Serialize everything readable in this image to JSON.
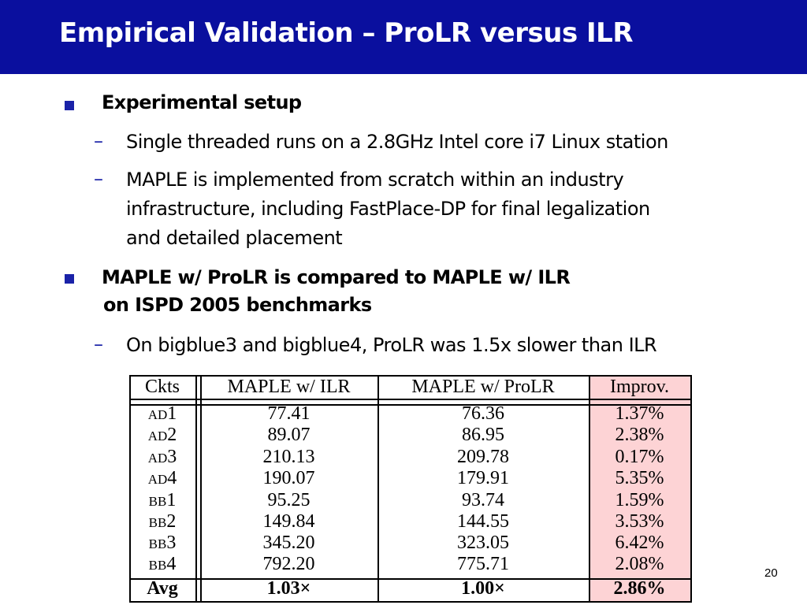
{
  "slide": {
    "title": "Empirical Validation – ProLR versus ILR",
    "page_number": "20",
    "bullets": [
      {
        "text": "Experimental setup",
        "subs": [
          "Single threaded runs on a 2.8GHz Intel core i7 Linux station",
          "MAPLE is implemented from scratch within an industry",
          "infrastructure, including FastPlace-DP for final legalization",
          "and detailed placement"
        ]
      },
      {
        "text": "MAPLE w/ ProLR is compared to MAPLE w/ ILR",
        "text2": "on ISPD 2005 benchmarks",
        "subs": [
          "On bigblue3 and bigblue4, ProLR was 1.5x slower than ILR"
        ]
      }
    ],
    "dash_glyph": "–",
    "square_glyph_color": "#1a22a8",
    "improv_highlight_color": "#fdd3d5"
  },
  "table": {
    "headers": [
      "Ckts",
      "MAPLE w/ ILR",
      "MAPLE w/ ProLR",
      "Improv."
    ],
    "rows": [
      [
        "ad1",
        "77.41",
        "76.36",
        "1.37%"
      ],
      [
        "ad2",
        "89.07",
        "86.95",
        "2.38%"
      ],
      [
        "ad3",
        "210.13",
        "209.78",
        "0.17%"
      ],
      [
        "ad4",
        "190.07",
        "179.91",
        "5.35%"
      ],
      [
        "bb1",
        "95.25",
        "93.74",
        "1.59%"
      ],
      [
        "bb2",
        "149.84",
        "144.55",
        "3.53%"
      ],
      [
        "bb3",
        "345.20",
        "323.05",
        "6.42%"
      ],
      [
        "bb4",
        "792.20",
        "775.71",
        "2.08%"
      ]
    ],
    "avg": [
      "Avg",
      "1.03×",
      "1.00×",
      "2.86%"
    ]
  }
}
